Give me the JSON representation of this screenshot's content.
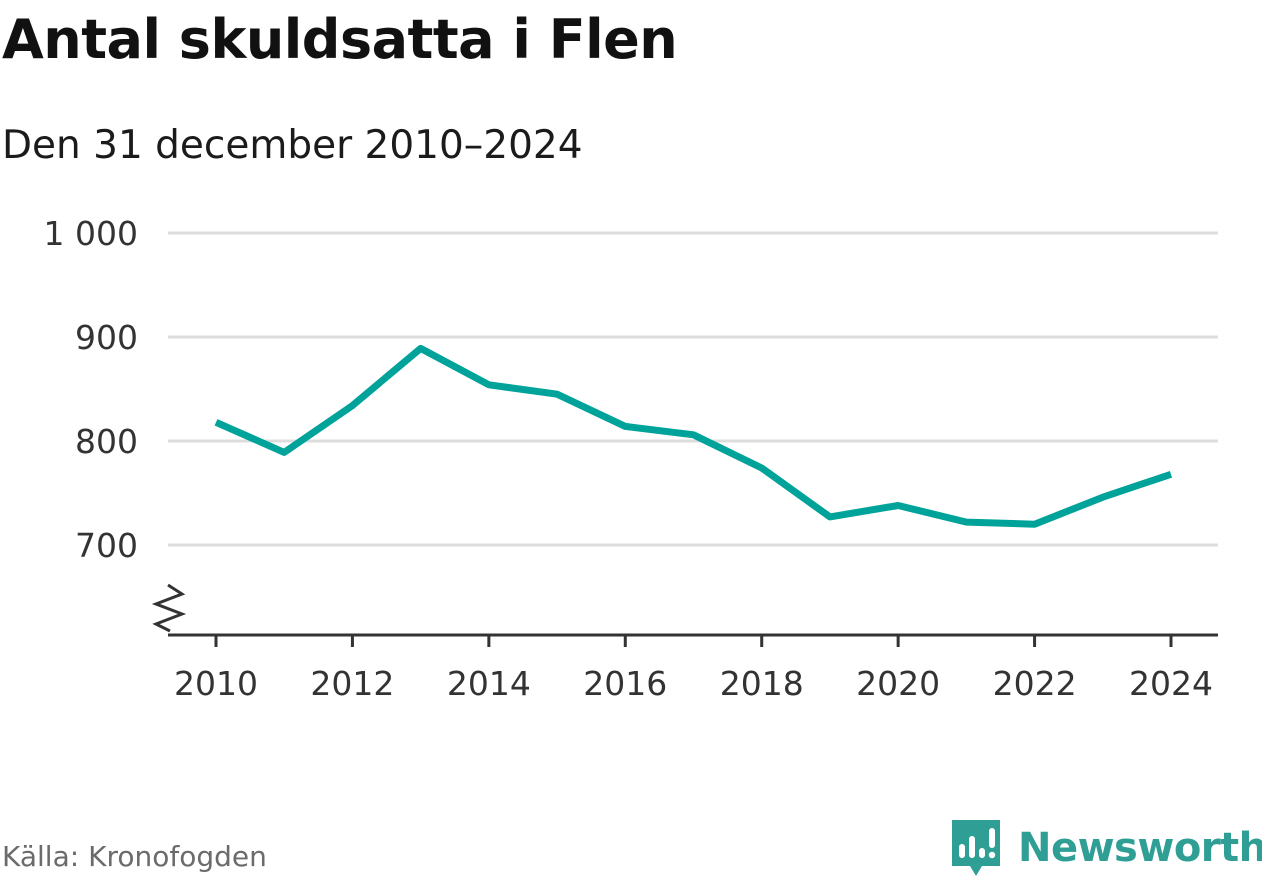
{
  "header": {
    "title": "Antal skuldsatta i Flen",
    "subtitle": "Den 31 december 2010–2024"
  },
  "footer": {
    "source": "Källa: Kronofogden",
    "brand_name": "Newsworthy"
  },
  "colors": {
    "line": "#00a39a",
    "grid": "#dddddd",
    "axis": "#333333",
    "brand": "#2f9f96"
  },
  "chart_data": {
    "type": "line",
    "title": "Antal skuldsatta i Flen",
    "subtitle": "Den 31 december 2010–2024",
    "xlabel": "",
    "ylabel": "",
    "x": [
      2010,
      2011,
      2012,
      2013,
      2014,
      2015,
      2016,
      2017,
      2018,
      2019,
      2020,
      2021,
      2022,
      2023,
      2024
    ],
    "series": [
      {
        "values": [
          818,
          789,
          834,
          889,
          854,
          845,
          814,
          806,
          774,
          727,
          738,
          722,
          720,
          746,
          768
        ]
      }
    ],
    "ylim": [
      620,
      1000
    ],
    "y_axis_break": true,
    "yticks": [
      700,
      800,
      900,
      1000
    ],
    "ytick_labels": [
      "700",
      "800",
      "900",
      "1 000"
    ],
    "xticks": [
      2010,
      2012,
      2014,
      2016,
      2018,
      2020,
      2022,
      2024
    ],
    "xtick_labels": [
      "2010",
      "2012",
      "2014",
      "2016",
      "2018",
      "2020",
      "2022",
      "2024"
    ],
    "grid": true
  }
}
